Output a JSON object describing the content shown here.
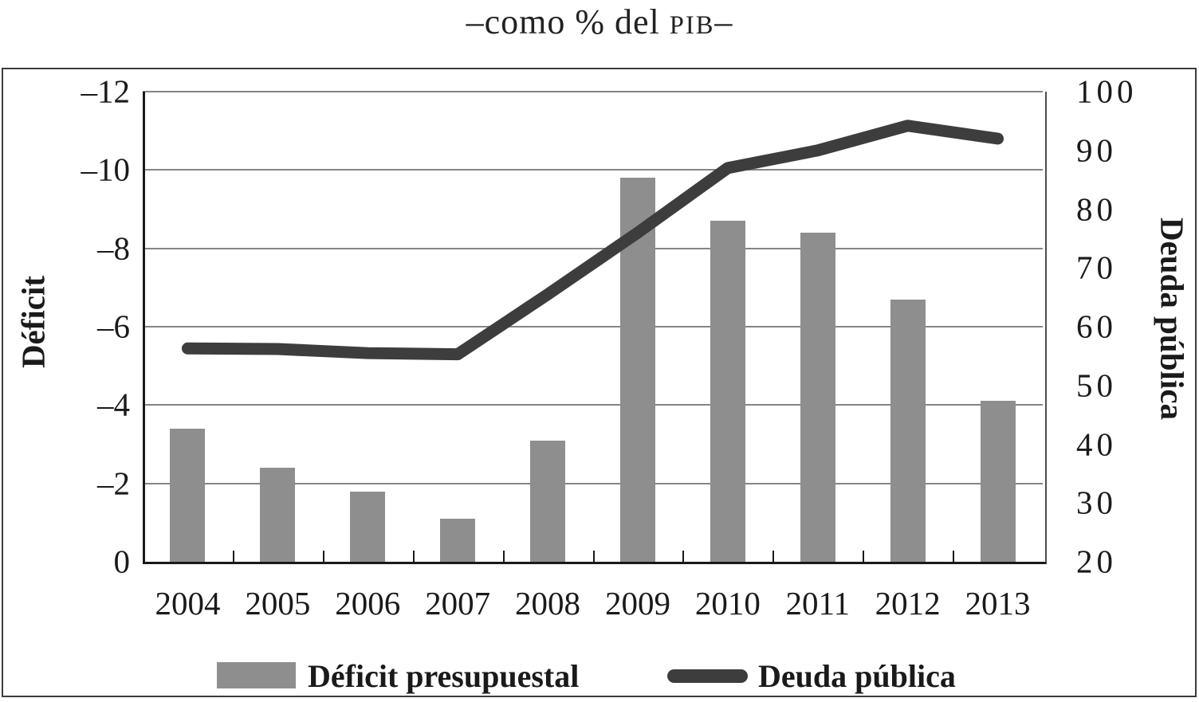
{
  "title": {
    "prefix": "–como % del ",
    "acronym": "PIB",
    "suffix": "–"
  },
  "colors": {
    "bar": "#8e8e8e",
    "line": "#3d3d3d",
    "grid": "#858585",
    "axis": "#1a1a1a",
    "text": "#1a1a1a",
    "background": "#ffffff"
  },
  "legend": {
    "items": [
      {
        "label": "Déficit presupuestal",
        "swatch": "bar"
      },
      {
        "label": "Deuda pública",
        "swatch": "line"
      }
    ]
  },
  "chart_data": {
    "type": "bar+line",
    "title": "–como % del PIB–",
    "categories": [
      "2004",
      "2005",
      "2006",
      "2007",
      "2008",
      "2009",
      "2010",
      "2011",
      "2012",
      "2013"
    ],
    "series": [
      {
        "name": "Déficit presupuestal",
        "type": "bar",
        "axis": "left",
        "values": [
          -3.4,
          -2.4,
          -1.8,
          -1.1,
          -3.1,
          -9.8,
          -8.7,
          -8.4,
          -6.7,
          -4.1
        ]
      },
      {
        "name": "Deuda pública",
        "type": "line",
        "axis": "right",
        "values": [
          56.3,
          56.2,
          55.5,
          55.3,
          65.5,
          76.0,
          87.0,
          90.0,
          94.2,
          92.0
        ]
      }
    ],
    "left_axis": {
      "title": "Déficit",
      "tick_labels": [
        "–12",
        "–10",
        "–8",
        "–6",
        "–4",
        "–2",
        "0"
      ],
      "tick_values": [
        -12,
        -10,
        -8,
        -6,
        -4,
        -2,
        0
      ],
      "range": [
        -12,
        0
      ],
      "inverted": true
    },
    "right_axis": {
      "title": "Deuda pública",
      "tick_labels": [
        "100",
        "90",
        "80",
        "70",
        "60",
        "50",
        "40",
        "30",
        "20"
      ],
      "tick_values": [
        100,
        90,
        80,
        70,
        60,
        50,
        40,
        30,
        20
      ],
      "range": [
        20,
        100
      ]
    },
    "grid": true,
    "legend_position": "bottom"
  }
}
